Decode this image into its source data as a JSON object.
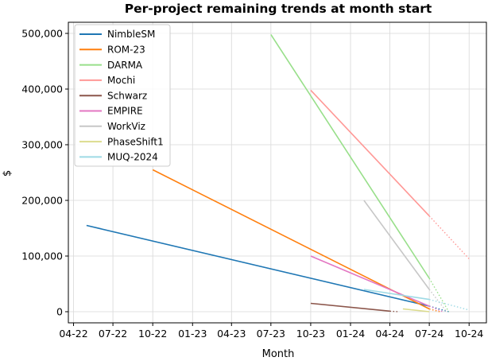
{
  "chart_data": {
    "type": "line",
    "title": "Per-project remaining trends at month start",
    "xlabel": "Month",
    "ylabel": "$",
    "x_ticks": [
      "04-22",
      "07-22",
      "10-22",
      "01-23",
      "04-23",
      "07-23",
      "10-23",
      "01-24",
      "04-24",
      "07-24",
      "10-24"
    ],
    "y_ticks": [
      "0",
      "100,000",
      "200,000",
      "300,000",
      "400,000",
      "500,000"
    ],
    "ylim": [
      -20000,
      520000
    ],
    "xlim": [
      "2022-03-20",
      "2024-11-10"
    ],
    "grid": true,
    "legend_position": "top-left",
    "series": [
      {
        "name": "NimbleSM",
        "color": "#1f77b4",
        "points": [
          [
            "2022-05-01",
            155000
          ],
          [
            "2024-07-01",
            10000
          ]
        ],
        "projection": [
          [
            "2024-07-01",
            10000
          ],
          [
            "2024-08-15",
            0
          ]
        ]
      },
      {
        "name": "ROM-23",
        "color": "#ff7f0e",
        "points": [
          [
            "2022-10-01",
            255000
          ],
          [
            "2024-07-01",
            5000
          ]
        ],
        "projection": [
          [
            "2024-07-01",
            5000
          ],
          [
            "2024-07-25",
            0
          ]
        ]
      },
      {
        "name": "DARMA",
        "color": "#98df8a",
        "points": [
          [
            "2023-07-01",
            498000
          ],
          [
            "2024-07-01",
            60000
          ]
        ],
        "projection": [
          [
            "2024-07-01",
            60000
          ],
          [
            "2024-08-15",
            0
          ]
        ]
      },
      {
        "name": "Mochi",
        "color": "#ff9896",
        "points": [
          [
            "2023-10-01",
            398000
          ],
          [
            "2024-07-01",
            172000
          ]
        ],
        "projection": [
          [
            "2024-07-01",
            172000
          ],
          [
            "2024-10-01",
            95000
          ]
        ]
      },
      {
        "name": "Schwarz",
        "color": "#8c564b",
        "points": [
          [
            "2023-10-01",
            15000
          ],
          [
            "2024-04-01",
            1000
          ]
        ],
        "projection": [
          [
            "2024-04-01",
            1000
          ],
          [
            "2024-04-20",
            0
          ]
        ]
      },
      {
        "name": "EMPIRE",
        "color": "#e377c2",
        "points": [
          [
            "2023-10-01",
            100000
          ],
          [
            "2024-07-01",
            10000
          ]
        ],
        "projection": [
          [
            "2024-07-01",
            10000
          ],
          [
            "2024-08-01",
            0
          ]
        ]
      },
      {
        "name": "WorkViz",
        "color": "#c7c7c7",
        "points": [
          [
            "2024-02-01",
            200000
          ],
          [
            "2024-07-01",
            40000
          ]
        ],
        "projection": [
          [
            "2024-07-01",
            40000
          ],
          [
            "2024-08-10",
            0
          ]
        ]
      },
      {
        "name": "PhaseShift1",
        "color": "#dbdb8d",
        "points": [
          [
            "2024-05-01",
            5000
          ],
          [
            "2024-07-01",
            0
          ]
        ],
        "projection": []
      },
      {
        "name": "MUQ-2024",
        "color": "#9edae5",
        "points": [
          [
            "2024-02-01",
            40000
          ],
          [
            "2024-07-01",
            22000
          ]
        ],
        "projection": [
          [
            "2024-07-01",
            22000
          ],
          [
            "2024-10-01",
            3000
          ]
        ]
      }
    ]
  }
}
